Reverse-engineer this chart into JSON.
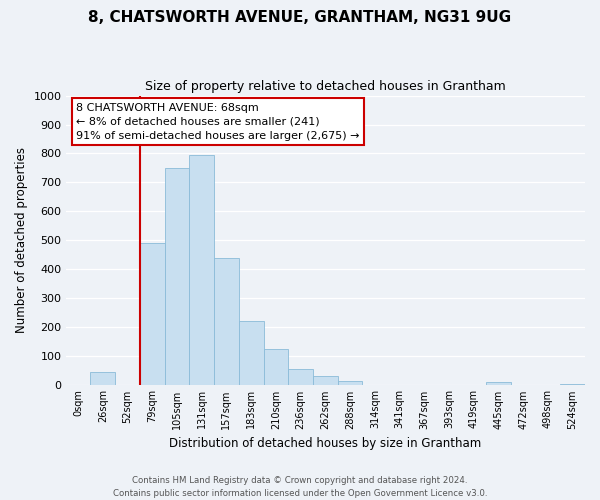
{
  "title": "8, CHATSWORTH AVENUE, GRANTHAM, NG31 9UG",
  "subtitle": "Size of property relative to detached houses in Grantham",
  "xlabel": "Distribution of detached houses by size in Grantham",
  "ylabel": "Number of detached properties",
  "bar_labels": [
    "0sqm",
    "26sqm",
    "52sqm",
    "79sqm",
    "105sqm",
    "131sqm",
    "157sqm",
    "183sqm",
    "210sqm",
    "236sqm",
    "262sqm",
    "288sqm",
    "314sqm",
    "341sqm",
    "367sqm",
    "393sqm",
    "419sqm",
    "445sqm",
    "472sqm",
    "498sqm",
    "524sqm"
  ],
  "bar_values": [
    0,
    45,
    0,
    490,
    750,
    795,
    440,
    220,
    125,
    55,
    30,
    15,
    0,
    0,
    0,
    0,
    0,
    10,
    0,
    0,
    5
  ],
  "bar_color": "#c8dff0",
  "bar_edge_color": "#8bbbd8",
  "vline_color": "#cc0000",
  "annotation_text": "8 CHATSWORTH AVENUE: 68sqm\n← 8% of detached houses are smaller (241)\n91% of semi-detached houses are larger (2,675) →",
  "annotation_box_color": "#ffffff",
  "annotation_box_edge_color": "#cc0000",
  "ylim": [
    0,
    1000
  ],
  "yticks": [
    0,
    100,
    200,
    300,
    400,
    500,
    600,
    700,
    800,
    900,
    1000
  ],
  "footer_line1": "Contains HM Land Registry data © Crown copyright and database right 2024.",
  "footer_line2": "Contains public sector information licensed under the Open Government Licence v3.0.",
  "background_color": "#eef2f7",
  "grid_color": "#ffffff",
  "title_fontsize": 11,
  "subtitle_fontsize": 9
}
